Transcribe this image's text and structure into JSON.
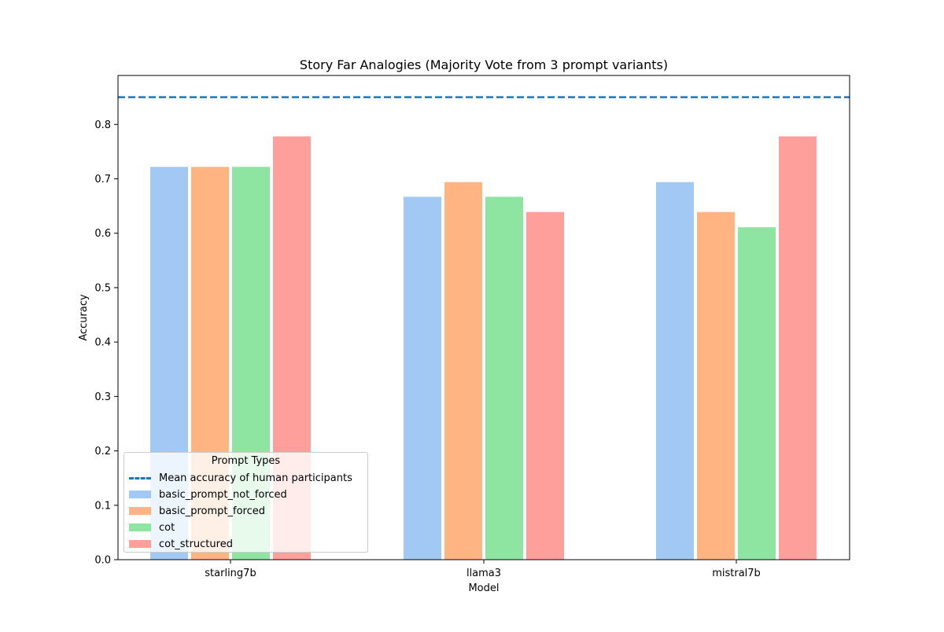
{
  "chart_data": {
    "type": "bar",
    "title": "Story Far Analogies (Majority Vote from 3 prompt variants)",
    "xlabel": "Model",
    "ylabel": "Accuracy",
    "categories": [
      "starling7b",
      "llama3",
      "mistral7b"
    ],
    "ylim": [
      0,
      0.89
    ],
    "yticks": [
      "0.0",
      "0.1",
      "0.2",
      "0.3",
      "0.4",
      "0.5",
      "0.6",
      "0.7",
      "0.8"
    ],
    "grid": false,
    "series": [
      {
        "name": "basic_prompt_not_forced",
        "color": "#a1c9f4",
        "values": [
          0.722,
          0.667,
          0.694
        ]
      },
      {
        "name": "basic_prompt_forced",
        "color": "#ffb482",
        "values": [
          0.722,
          0.694,
          0.639
        ]
      },
      {
        "name": "cot",
        "color": "#8de5a1",
        "values": [
          0.722,
          0.667,
          0.611
        ]
      },
      {
        "name": "cot_structured",
        "color": "#ff9f9b",
        "values": [
          0.778,
          0.639,
          0.778
        ]
      }
    ],
    "reference_line": {
      "name": "Mean accuracy of human participants",
      "value": 0.85,
      "color": "#1f77b4",
      "style": "dashed"
    },
    "legend": {
      "title": "Prompt Types",
      "placement": "lower-left"
    }
  }
}
